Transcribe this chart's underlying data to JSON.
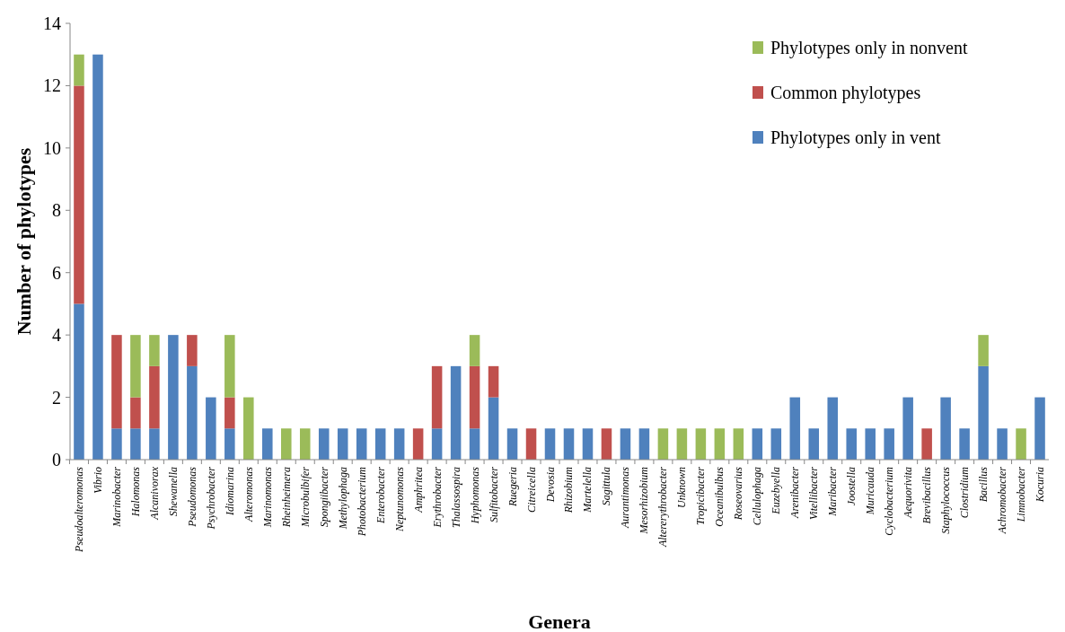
{
  "chart_data": {
    "type": "bar",
    "stacked": true,
    "xlabel": "Genera",
    "ylabel": "Number of phylotypes",
    "categories": [
      "Pseudoalteromonas",
      "Vibrio",
      "Marinobacter",
      "Halomonas",
      "Alcanivorax",
      "Shewanella",
      "Pseudomonas",
      "Psychrobacter",
      "Idiomarina",
      "Alteromonas",
      "Marinomonas",
      "Rheinheimera",
      "Microbulbifer",
      "Spongiibacter",
      "Methylophaga",
      "Photobacterium",
      "Enterobacter",
      "Neptunomonas",
      "Amphritea",
      "Erythrobacter",
      "Thalassospira",
      "Hyphomonas",
      "Sulfitobacter",
      "Ruegeria",
      "Citreicella",
      "Devosia",
      "Rhizobium",
      "Martelella",
      "Sagittula",
      "Aurantimonas",
      "Mesorhizobium",
      "Altererythrobacter",
      "Unknown",
      "Tropicibacter",
      "Oceanibulbus",
      "Roseovarius",
      "Cellulophaga",
      "Euzebyella",
      "Arenibacter",
      "Vitellibacter",
      "Maribacter",
      "Joostella",
      "Muricauda",
      "Cyclobacterium",
      "Aequorivita",
      "Brevibacillus",
      "Staphylococcus",
      "Clostridium",
      "Bacillus",
      "Achromobacter",
      "Limnobacter",
      "Kocuria"
    ],
    "series": [
      {
        "name": "Phylotypes only in vent",
        "color": "#4f81bd",
        "values": [
          5,
          13,
          1,
          1,
          1,
          4,
          3,
          2,
          1,
          0,
          1,
          0,
          0,
          1,
          1,
          1,
          1,
          1,
          0,
          1,
          3,
          1,
          2,
          1,
          0,
          1,
          1,
          1,
          0,
          1,
          1,
          0,
          0,
          0,
          0,
          0,
          1,
          1,
          2,
          1,
          2,
          1,
          1,
          1,
          2,
          0,
          2,
          1,
          3,
          1,
          0,
          2
        ]
      },
      {
        "name": "Common phylotypes",
        "color": "#c0504d",
        "values": [
          7,
          0,
          3,
          1,
          2,
          0,
          1,
          0,
          1,
          0,
          0,
          0,
          0,
          0,
          0,
          0,
          0,
          0,
          1,
          2,
          0,
          2,
          1,
          0,
          1,
          0,
          0,
          0,
          1,
          0,
          0,
          0,
          0,
          0,
          0,
          0,
          0,
          0,
          0,
          0,
          0,
          0,
          0,
          0,
          0,
          1,
          0,
          0,
          0,
          0,
          0,
          0
        ]
      },
      {
        "name": "Phylotypes only in nonvent",
        "color": "#9bbb59",
        "values": [
          1,
          0,
          0,
          2,
          1,
          0,
          0,
          0,
          2,
          2,
          0,
          1,
          1,
          0,
          0,
          0,
          0,
          0,
          0,
          0,
          0,
          1,
          0,
          0,
          0,
          0,
          0,
          0,
          0,
          0,
          0,
          1,
          1,
          1,
          1,
          1,
          0,
          0,
          0,
          0,
          0,
          0,
          0,
          0,
          0,
          0,
          0,
          0,
          1,
          0,
          1,
          0
        ]
      }
    ],
    "ylim": [
      0,
      14
    ],
    "yticks": [
      0,
      2,
      4,
      6,
      8,
      10,
      12,
      14
    ],
    "legend": "top right"
  }
}
